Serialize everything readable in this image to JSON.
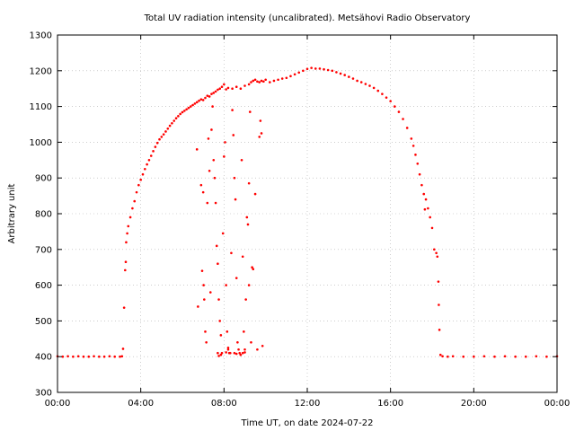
{
  "chart_data": {
    "type": "scatter",
    "title": "Total UV radiation intensity (uncalibrated). Metsähovi Radio Observatory",
    "xlabel": "Time UT, on date 2024-07-22",
    "ylabel": "Arbitrary unit",
    "x_unit": "hours UT",
    "xlim": [
      0,
      24
    ],
    "ylim": [
      300,
      1300
    ],
    "x_ticks": [
      0,
      4,
      8,
      12,
      16,
      20,
      24
    ],
    "x_tick_labels": [
      "00:00",
      "04:00",
      "08:00",
      "12:00",
      "16:00",
      "20:00",
      "00:00"
    ],
    "y_ticks": [
      300,
      400,
      500,
      600,
      700,
      800,
      900,
      1000,
      1100,
      1200,
      1300
    ],
    "y_tick_labels": [
      "300",
      "400",
      "500",
      "600",
      "700",
      "800",
      "900",
      "1000",
      "1100",
      "1200",
      "1300"
    ],
    "grid": true,
    "marker_color": "#ff0000",
    "series": [
      {
        "name": "",
        "points": [
          [
            0.0,
            401
          ],
          [
            0.25,
            400
          ],
          [
            0.5,
            401
          ],
          [
            0.75,
            400
          ],
          [
            1.0,
            401
          ],
          [
            1.25,
            400
          ],
          [
            1.5,
            400
          ],
          [
            1.75,
            401
          ],
          [
            2.0,
            400
          ],
          [
            2.25,
            400
          ],
          [
            2.5,
            401
          ],
          [
            2.75,
            400
          ],
          [
            3.0,
            400
          ],
          [
            3.1,
            401
          ],
          [
            3.15,
            422
          ],
          [
            3.2,
            537
          ],
          [
            3.25,
            642
          ],
          [
            3.28,
            665
          ],
          [
            3.3,
            720
          ],
          [
            3.35,
            745
          ],
          [
            3.4,
            765
          ],
          [
            3.5,
            790
          ],
          [
            3.6,
            815
          ],
          [
            3.7,
            835
          ],
          [
            3.8,
            860
          ],
          [
            3.9,
            880
          ],
          [
            4.0,
            895
          ],
          [
            4.1,
            910
          ],
          [
            4.2,
            925
          ],
          [
            4.3,
            938
          ],
          [
            4.4,
            950
          ],
          [
            4.5,
            962
          ],
          [
            4.6,
            975
          ],
          [
            4.7,
            987
          ],
          [
            4.8,
            998
          ],
          [
            4.9,
            1008
          ],
          [
            5.0,
            1015
          ],
          [
            5.1,
            1022
          ],
          [
            5.2,
            1030
          ],
          [
            5.3,
            1038
          ],
          [
            5.4,
            1046
          ],
          [
            5.5,
            1053
          ],
          [
            5.6,
            1060
          ],
          [
            5.7,
            1067
          ],
          [
            5.8,
            1073
          ],
          [
            5.9,
            1079
          ],
          [
            6.0,
            1084
          ],
          [
            6.1,
            1088
          ],
          [
            6.2,
            1092
          ],
          [
            6.3,
            1096
          ],
          [
            6.4,
            1100
          ],
          [
            6.5,
            1104
          ],
          [
            6.6,
            1108
          ],
          [
            6.7,
            1112
          ],
          [
            6.8,
            1116
          ],
          [
            6.9,
            1120
          ],
          [
            7.0,
            1118
          ],
          [
            7.1,
            1124
          ],
          [
            7.2,
            1130
          ],
          [
            7.3,
            1128
          ],
          [
            7.4,
            1135
          ],
          [
            7.5,
            1138
          ],
          [
            7.6,
            1142
          ],
          [
            7.7,
            1147
          ],
          [
            7.8,
            1150
          ],
          [
            7.9,
            1155
          ],
          [
            8.0,
            1162
          ],
          [
            8.1,
            1148
          ],
          [
            8.2,
            1152
          ],
          [
            8.4,
            1150
          ],
          [
            8.6,
            1155
          ],
          [
            8.8,
            1150
          ],
          [
            9.0,
            1158
          ],
          [
            9.2,
            1162
          ],
          [
            9.3,
            1168
          ],
          [
            9.4,
            1172
          ],
          [
            9.5,
            1175
          ],
          [
            9.6,
            1170
          ],
          [
            9.7,
            1168
          ],
          [
            9.8,
            1172
          ],
          [
            9.9,
            1170
          ],
          [
            10.0,
            1175
          ],
          [
            10.2,
            1168
          ],
          [
            10.4,
            1172
          ],
          [
            10.6,
            1175
          ],
          [
            10.8,
            1178
          ],
          [
            11.0,
            1180
          ],
          [
            11.2,
            1185
          ],
          [
            11.4,
            1190
          ],
          [
            11.6,
            1195
          ],
          [
            11.8,
            1200
          ],
          [
            12.0,
            1205
          ],
          [
            12.2,
            1208
          ],
          [
            12.4,
            1206
          ],
          [
            12.6,
            1206
          ],
          [
            12.8,
            1204
          ],
          [
            13.0,
            1202
          ],
          [
            13.2,
            1200
          ],
          [
            13.4,
            1196
          ],
          [
            13.6,
            1192
          ],
          [
            13.8,
            1188
          ],
          [
            14.0,
            1183
          ],
          [
            14.2,
            1178
          ],
          [
            14.4,
            1172
          ],
          [
            14.6,
            1168
          ],
          [
            14.8,
            1163
          ],
          [
            15.0,
            1158
          ],
          [
            15.2,
            1152
          ],
          [
            15.4,
            1144
          ],
          [
            15.6,
            1135
          ],
          [
            15.8,
            1125
          ],
          [
            16.0,
            1115
          ],
          [
            16.2,
            1100
          ],
          [
            16.4,
            1085
          ],
          [
            16.6,
            1065
          ],
          [
            16.8,
            1040
          ],
          [
            17.0,
            1010
          ],
          [
            17.1,
            990
          ],
          [
            17.2,
            965
          ],
          [
            17.3,
            940
          ],
          [
            17.4,
            910
          ],
          [
            17.5,
            880
          ],
          [
            17.6,
            855
          ],
          [
            17.65,
            812
          ],
          [
            17.7,
            840
          ],
          [
            17.8,
            815
          ],
          [
            17.9,
            790
          ],
          [
            18.0,
            760
          ],
          [
            18.1,
            700
          ],
          [
            18.2,
            690
          ],
          [
            18.25,
            680
          ],
          [
            18.3,
            610
          ],
          [
            18.32,
            545
          ],
          [
            18.35,
            475
          ],
          [
            18.4,
            405
          ],
          [
            18.5,
            401
          ],
          [
            18.75,
            400
          ],
          [
            19.0,
            401
          ],
          [
            19.5,
            400
          ],
          [
            20.0,
            400
          ],
          [
            20.5,
            401
          ],
          [
            21.0,
            400
          ],
          [
            21.5,
            401
          ],
          [
            22.0,
            400
          ],
          [
            22.5,
            400
          ],
          [
            23.0,
            401
          ],
          [
            23.5,
            400
          ],
          [
            24.0,
            401
          ],
          [
            6.7,
            980
          ],
          [
            6.75,
            540
          ],
          [
            6.9,
            880
          ],
          [
            6.95,
            640
          ],
          [
            7.0,
            860
          ],
          [
            7.02,
            600
          ],
          [
            7.05,
            560
          ],
          [
            7.1,
            470
          ],
          [
            7.15,
            440
          ],
          [
            7.2,
            830
          ],
          [
            7.25,
            1010
          ],
          [
            7.3,
            920
          ],
          [
            7.35,
            580
          ],
          [
            7.4,
            1035
          ],
          [
            7.45,
            1100
          ],
          [
            7.5,
            950
          ],
          [
            7.55,
            900
          ],
          [
            7.6,
            830
          ],
          [
            7.65,
            710
          ],
          [
            7.7,
            660
          ],
          [
            7.75,
            560
          ],
          [
            7.8,
            500
          ],
          [
            7.85,
            460
          ],
          [
            7.9,
            410
          ],
          [
            7.95,
            745
          ],
          [
            8.0,
            960
          ],
          [
            8.05,
            1000
          ],
          [
            8.1,
            600
          ],
          [
            8.15,
            470
          ],
          [
            8.2,
            420
          ],
          [
            8.25,
            410
          ],
          [
            8.3,
            410
          ],
          [
            8.35,
            690
          ],
          [
            8.4,
            1090
          ],
          [
            8.45,
            1020
          ],
          [
            8.5,
            900
          ],
          [
            8.55,
            840
          ],
          [
            8.6,
            620
          ],
          [
            8.65,
            440
          ],
          [
            8.7,
            420
          ],
          [
            8.75,
            410
          ],
          [
            8.8,
            405
          ],
          [
            8.85,
            950
          ],
          [
            8.9,
            680
          ],
          [
            8.95,
            470
          ],
          [
            9.0,
            420
          ],
          [
            9.05,
            560
          ],
          [
            9.1,
            790
          ],
          [
            9.15,
            770
          ],
          [
            9.2,
            885
          ],
          [
            9.25,
            1085
          ],
          [
            9.3,
            440
          ],
          [
            9.35,
            650
          ],
          [
            9.4,
            645
          ],
          [
            9.5,
            855
          ],
          [
            9.6,
            420
          ],
          [
            9.7,
            1015
          ],
          [
            9.75,
            1060
          ],
          [
            9.8,
            1025
          ],
          [
            9.85,
            430
          ],
          [
            7.7,
            410
          ],
          [
            7.75,
            402
          ],
          [
            7.85,
            405
          ],
          [
            8.1,
            412
          ],
          [
            8.2,
            425
          ],
          [
            8.5,
            410
          ],
          [
            8.6,
            408
          ],
          [
            8.9,
            410
          ],
          [
            9.0,
            412
          ],
          [
            9.2,
            600
          ]
        ]
      }
    ]
  }
}
